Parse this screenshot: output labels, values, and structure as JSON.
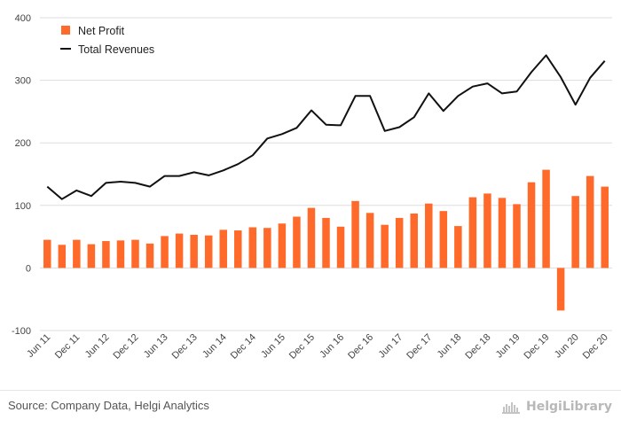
{
  "colors": {
    "bar": "#ff6a2b",
    "line": "#111111",
    "grid": "#dddddd",
    "axis_text": "#444444"
  },
  "source": "Source: Company Data, Helgi Analytics",
  "logo": {
    "text": "HelgiLibrary",
    "icon": "helgi-library-logo-icon"
  },
  "chart_data": {
    "type": "bar",
    "title": "",
    "xlabel": "",
    "ylabel": "",
    "ylim": [
      -100,
      400
    ],
    "yticks": [
      -100,
      0,
      100,
      200,
      300,
      400
    ],
    "grid": true,
    "legend_position": "top-left",
    "categories": [
      "Jun 11",
      "Sep 11",
      "Dec 11",
      "Mar 12",
      "Jun 12",
      "Sep 12",
      "Dec 12",
      "Mar 13",
      "Jun 13",
      "Sep 13",
      "Dec 13",
      "Mar 14",
      "Jun 14",
      "Sep 14",
      "Dec 14",
      "Mar 15",
      "Jun 15",
      "Sep 15",
      "Dec 15",
      "Mar 16",
      "Jun 16",
      "Sep 16",
      "Dec 16",
      "Mar 17",
      "Jun 17",
      "Sep 17",
      "Dec 17",
      "Mar 18",
      "Jun 18",
      "Sep 18",
      "Dec 18",
      "Mar 19",
      "Jun 19",
      "Sep 19",
      "Dec 19",
      "Mar 20",
      "Jun 20",
      "Sep 20",
      "Dec 20"
    ],
    "x_tick_labels": [
      "Jun 11",
      "Dec 11",
      "Jun 12",
      "Dec 12",
      "Jun 13",
      "Dec 13",
      "Jun 14",
      "Dec 14",
      "Jun 15",
      "Dec 15",
      "Jun 16",
      "Dec 16",
      "Jun 17",
      "Dec 17",
      "Jun 18",
      "Dec 18",
      "Jun 19",
      "Dec 19",
      "Jun 20",
      "Dec 20"
    ],
    "series": [
      {
        "name": "Net Profit",
        "type": "bar",
        "values": [
          45,
          37,
          45,
          38,
          43,
          44,
          45,
          39,
          51,
          55,
          53,
          52,
          61,
          60,
          65,
          64,
          71,
          82,
          96,
          80,
          66,
          107,
          88,
          69,
          80,
          87,
          103,
          91,
          67,
          113,
          119,
          112,
          102,
          137,
          157,
          -68,
          115,
          147,
          130
        ]
      },
      {
        "name": "Total Revenues",
        "type": "line",
        "values": [
          130,
          110,
          124,
          115,
          136,
          138,
          136,
          130,
          147,
          147,
          153,
          148,
          156,
          166,
          180,
          207,
          214,
          224,
          252,
          229,
          228,
          275,
          275,
          219,
          225,
          241,
          279,
          251,
          275,
          290,
          295,
          279,
          282,
          313,
          340,
          305,
          261,
          304,
          331
        ]
      }
    ]
  }
}
